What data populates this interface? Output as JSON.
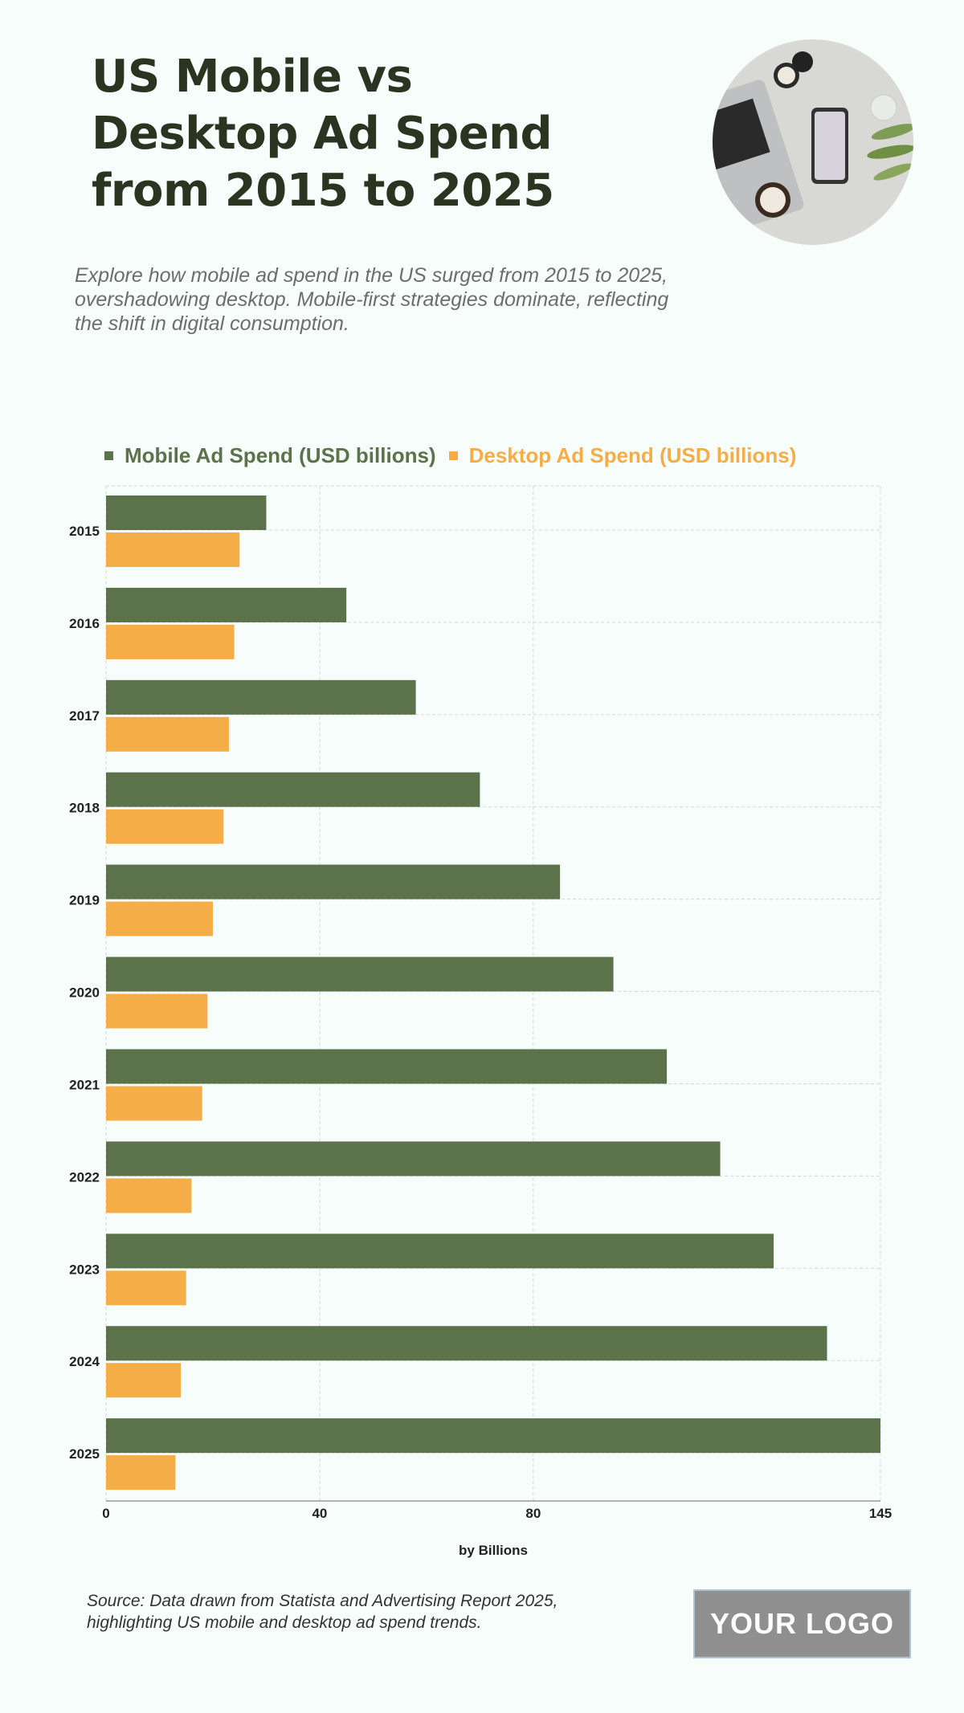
{
  "header": {
    "title": "US Mobile vs Desktop Ad Spend from 2015 to 2025",
    "subtitle": "Explore how mobile ad spend in the US surged from 2015 to 2025, overshadowing desktop. Mobile-first strategies dominate, reflecting the shift in digital consumption."
  },
  "colors": {
    "mobile": "#5b724a",
    "desktop": "#f5ad47",
    "title": "#2b3321",
    "background": "#f7fdfa"
  },
  "chart_data": {
    "type": "bar",
    "orientation": "horizontal",
    "categories": [
      "2015",
      "2016",
      "2017",
      "2018",
      "2019",
      "2020",
      "2021",
      "2022",
      "2023",
      "2024",
      "2025"
    ],
    "series": [
      {
        "name": "Mobile Ad Spend (USD billions)",
        "values": [
          30,
          45,
          58,
          70,
          85,
          95,
          105,
          115,
          125,
          135,
          145
        ]
      },
      {
        "name": "Desktop Ad Spend (USD billions)",
        "values": [
          25,
          24,
          23,
          22,
          20,
          19,
          18,
          16,
          15,
          14,
          13
        ]
      }
    ],
    "xlabel": "by Billions",
    "ylabel": "",
    "xlim": [
      0,
      145
    ],
    "xticks": [
      "0",
      "40",
      "80",
      "145"
    ],
    "xtick_values": [
      0,
      40,
      80,
      145
    ],
    "grid": true,
    "legend": "top"
  },
  "footer": {
    "source": "Source: Data drawn from Statista and Advertising Report 2025, highlighting US mobile and desktop ad spend trends.",
    "logo": "YOUR LOGO"
  }
}
